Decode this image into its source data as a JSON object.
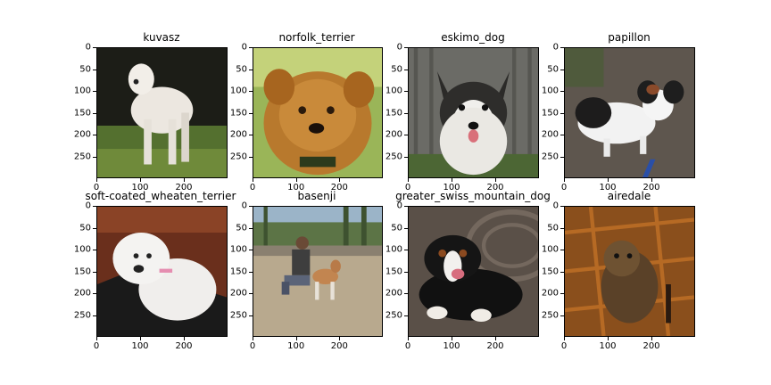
{
  "figure": {
    "panels": [
      {
        "title": "kuvasz",
        "photo": "white-dog-on-grass"
      },
      {
        "title": "norfolk_terrier",
        "photo": "brown-terrier-closeup"
      },
      {
        "title": "eskimo_dog",
        "photo": "husky-by-fence"
      },
      {
        "title": "papillon",
        "photo": "papillon-on-pavement"
      },
      {
        "title": "soft-coated_wheaten_terrier",
        "photo": "white-fluffy-dog"
      },
      {
        "title": "basenji",
        "photo": "woman-with-basenji"
      },
      {
        "title": "greater_swiss_mountain_dog",
        "photo": "tricolor-dog-lying"
      },
      {
        "title": "airedale",
        "photo": "airedale-on-wood-floor"
      }
    ],
    "y_ticks": [
      "0",
      "50",
      "100",
      "150",
      "200",
      "250"
    ],
    "x_ticks": [
      "0",
      "100",
      "200"
    ]
  }
}
